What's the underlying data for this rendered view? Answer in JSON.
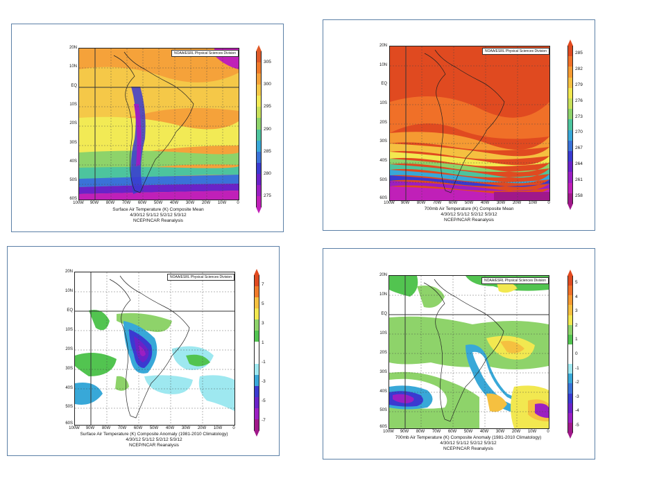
{
  "panels": [
    {
      "id": "p1",
      "credit": "NOAA/ESRL Physical Sciences Division",
      "lat_labels": [
        "20N",
        "10N",
        "EQ",
        "10S",
        "20S",
        "30S",
        "40S",
        "50S",
        "60S"
      ],
      "lon_labels": [
        "100W",
        "90W",
        "80W",
        "70W",
        "60W",
        "50W",
        "40W",
        "30W",
        "20W",
        "10W",
        "0"
      ],
      "caption": [
        "Surface Air Temperature (K) Composite Mean",
        "4/30/12 5/1/12 5/2/12 5/3/12",
        "NCEP/NCAR Reanalysis"
      ],
      "colorbar": {
        "labels": [
          "305",
          "300",
          "295",
          "290",
          "285",
          "280",
          "275"
        ],
        "colors": [
          "#e05a28",
          "#f07a2a",
          "#f5a23a",
          "#f5c848",
          "#f2ea55",
          "#c8e05a",
          "#8ed36a",
          "#4dc49e",
          "#38a8d8",
          "#3a72d8",
          "#3a3ad0",
          "#6a22c8",
          "#9b1fc2",
          "#c020b8"
        ]
      }
    },
    {
      "id": "p2",
      "credit": "NOAA/ESRL Physical Sciences Division",
      "lat_labels": [
        "20N",
        "10N",
        "EQ",
        "10S",
        "20S",
        "30S",
        "40S",
        "50S",
        "60S"
      ],
      "lon_labels": [
        "100W",
        "90W",
        "80W",
        "70W",
        "60W",
        "50W",
        "40W",
        "30W",
        "20W",
        "10W",
        "0"
      ],
      "caption": [
        "700mb Air Temperature (K) Composite Mean",
        "4/30/12 5/1/12 5/2/12 5/3/12",
        "NCEP/NCAR Reanalysis"
      ],
      "colorbar": {
        "labels": [
          "285",
          "282",
          "279",
          "276",
          "273",
          "270",
          "267",
          "264",
          "261",
          "258"
        ],
        "colors": [
          "#e04a20",
          "#f07028",
          "#f59a32",
          "#f5c040",
          "#f2e850",
          "#c8e05a",
          "#8ed36a",
          "#4dc49e",
          "#38a8d8",
          "#3a72d8",
          "#3a3ad0",
          "#6a22c8",
          "#9b1fc2",
          "#c020b8",
          "#a0188a"
        ]
      }
    },
    {
      "id": "p3",
      "credit": "NOAA/ESRL Physical Sciences Division",
      "lat_labels": [
        "20N",
        "10N",
        "EQ",
        "10S",
        "20S",
        "30S",
        "40S",
        "50S",
        "60S"
      ],
      "lon_labels": [
        "100W",
        "90W",
        "80W",
        "70W",
        "60W",
        "50W",
        "40W",
        "30W",
        "20W",
        "10W",
        "0"
      ],
      "caption": [
        "Surface Air Temperature (K) Composite Anomaly (1981-2010 Climatology)",
        "4/30/12 5/1/12 5/2/12 5/3/12",
        "NCEP/NCAR Reanalysis"
      ],
      "colorbar": {
        "labels": [
          "7",
          "5",
          "3",
          "1",
          "-1",
          "-3",
          "-5",
          "-7"
        ],
        "colors": [
          "#e04a20",
          "#f07a2a",
          "#f5c040",
          "#f2e850",
          "#8ed36a",
          "#52c450",
          "#ffffff",
          "#ffffff",
          "#9ee8f0",
          "#38a8d8",
          "#3a3ad0",
          "#6a22c8",
          "#9b1fc2",
          "#a0188a"
        ]
      }
    },
    {
      "id": "p4",
      "credit": "NOAA/ESRL Physical Sciences Division",
      "lat_labels": [
        "20N",
        "10N",
        "EQ",
        "10S",
        "20S",
        "30S",
        "40S",
        "50S",
        "60S"
      ],
      "lon_labels": [
        "100W",
        "90W",
        "80W",
        "70W",
        "60W",
        "50W",
        "40W",
        "30W",
        "20W",
        "10W",
        "0"
      ],
      "caption": [
        "700mb Air Temperature (K) Composite Anomaly (1981-2010 Climatology)",
        "4/30/12 5/1/12 5/2/12 5/3/12",
        "NCEP/NCAR Reanalysis"
      ],
      "colorbar": {
        "labels": [
          "5",
          "4",
          "3",
          "2",
          "1",
          "0",
          "-1",
          "-2",
          "-3",
          "-4",
          "-5"
        ],
        "colors": [
          "#e04a20",
          "#f07028",
          "#f59a32",
          "#f5c040",
          "#f2e850",
          "#8ed36a",
          "#52c450",
          "#ffffff",
          "#ffffff",
          "#9ee8f0",
          "#38a8d8",
          "#3a72d8",
          "#3a3ad0",
          "#6a22c8",
          "#9b1fc2",
          "#a0188a"
        ]
      }
    }
  ]
}
